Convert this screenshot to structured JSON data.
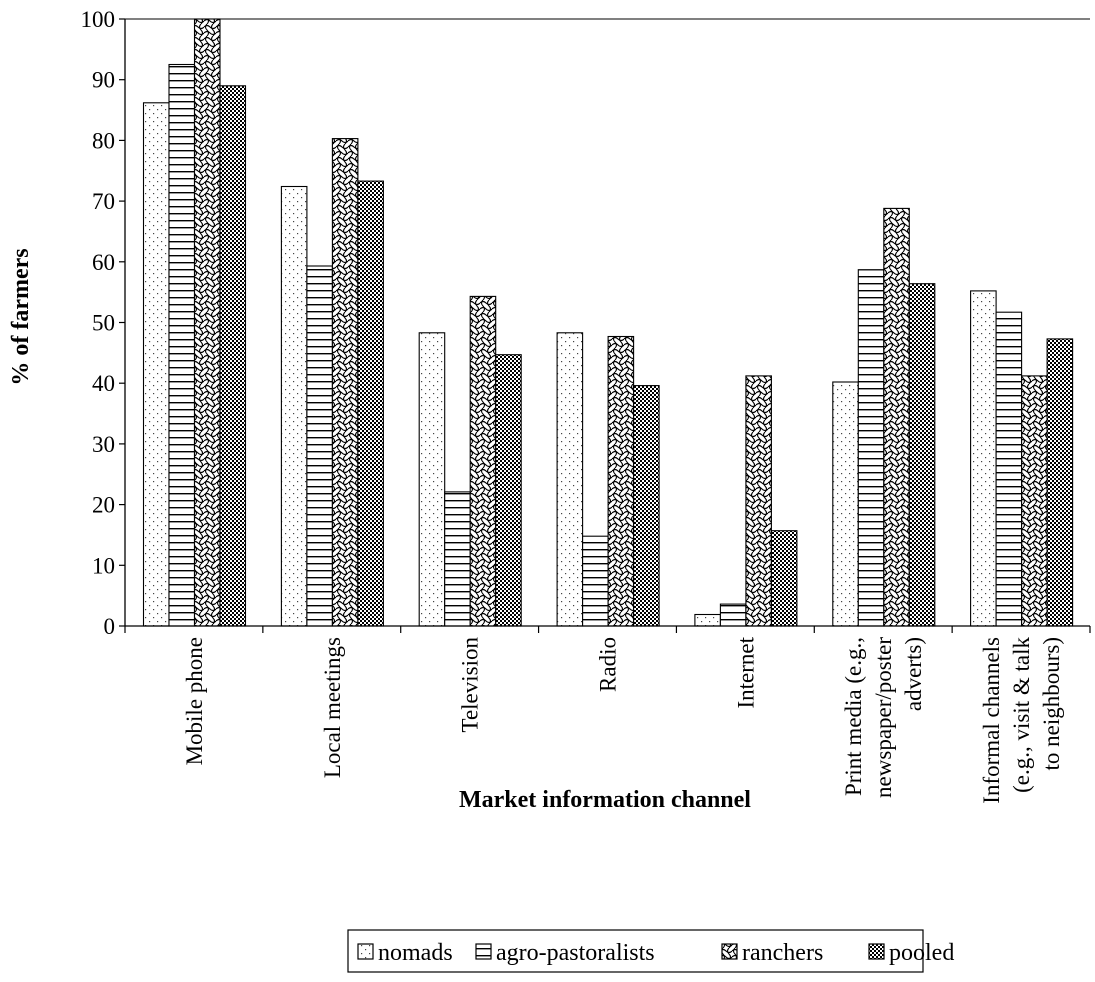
{
  "chart_data": {
    "type": "bar",
    "title": "",
    "xlabel": "Market information channel",
    "ylabel": "% of farmers",
    "ylim": [
      0,
      100
    ],
    "yticks": [
      0,
      10,
      20,
      30,
      40,
      50,
      60,
      70,
      80,
      90,
      100
    ],
    "grid": false,
    "legend_position": "bottom",
    "categories": [
      [
        "Mobile phone"
      ],
      [
        "Local meetings"
      ],
      [
        "Television"
      ],
      [
        "Radio"
      ],
      [
        "Internet"
      ],
      [
        "Print media (e.g.,",
        "newspaper/poster",
        "adverts)"
      ],
      [
        "Informal channels",
        "(e.g., visit & talk",
        "to neighbours)"
      ]
    ],
    "series": [
      {
        "name": "nomads",
        "pattern": "dots",
        "values": [
          86.2,
          72.4,
          48.3,
          48.3,
          1.9,
          40.2,
          55.2
        ]
      },
      {
        "name": "agro-pastoralists",
        "pattern": "hlines",
        "values": [
          92.5,
          59.3,
          22.1,
          14.8,
          3.6,
          58.7,
          51.7
        ]
      },
      {
        "name": "ranchers",
        "pattern": "waves",
        "values": [
          100.0,
          80.3,
          54.3,
          47.7,
          41.2,
          68.8,
          41.2
        ]
      },
      {
        "name": "pooled",
        "pattern": "checker",
        "values": [
          89.0,
          73.3,
          44.7,
          39.6,
          15.7,
          56.4,
          47.3
        ]
      }
    ]
  }
}
